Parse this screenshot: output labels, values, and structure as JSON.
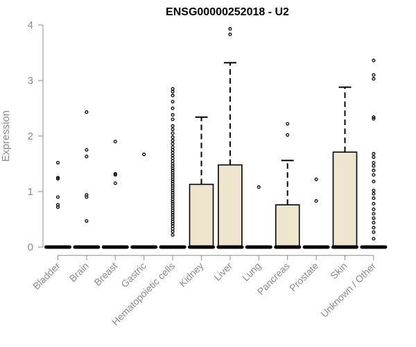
{
  "chart_data": {
    "type": "boxplot",
    "title": "ENSG00000252018 - U2",
    "xlabel": "",
    "ylabel": "Expression",
    "ylim": [
      0,
      4
    ],
    "yticks": [
      0,
      1,
      2,
      3,
      4
    ],
    "box_fill": "#ede6cc",
    "categories": [
      "Bladder",
      "Brain",
      "Breast",
      "Gastric",
      "Hematopoietic cells",
      "Kidney",
      "Liver",
      "Lung",
      "Pancreas",
      "Prostate",
      "Skin",
      "Unknown / Other"
    ],
    "boxes": [
      {
        "q1": 0,
        "median": 0,
        "q3": 0,
        "whisker_low": 0,
        "whisker_high": 0,
        "outliers": [
          0.72,
          0.76,
          0.9,
          1.23,
          1.25,
          1.52
        ]
      },
      {
        "q1": 0,
        "median": 0,
        "q3": 0,
        "whisker_low": 0,
        "whisker_high": 0,
        "outliers": [
          0.47,
          0.9,
          0.94,
          1.63,
          1.75,
          2.43
        ]
      },
      {
        "q1": 0,
        "median": 0,
        "q3": 0,
        "whisker_low": 0,
        "whisker_high": 0,
        "outliers": [
          1.15,
          1.3,
          1.32,
          1.9
        ]
      },
      {
        "q1": 0,
        "median": 0,
        "q3": 0,
        "whisker_low": 0,
        "whisker_high": 0,
        "outliers": [
          1.67
        ]
      },
      {
        "q1": 0,
        "median": 0,
        "q3": 0,
        "whisker_low": 0,
        "whisker_high": 0,
        "outliers": [
          0.22,
          0.28,
          0.33,
          0.38,
          0.42,
          0.46,
          0.5,
          0.54,
          0.58,
          0.62,
          0.66,
          0.7,
          0.74,
          0.78,
          0.82,
          0.86,
          0.9,
          0.94,
          0.98,
          1.02,
          1.06,
          1.1,
          1.14,
          1.18,
          1.22,
          1.26,
          1.3,
          1.34,
          1.38,
          1.42,
          1.46,
          1.5,
          1.55,
          1.6,
          1.65,
          1.7,
          1.75,
          1.8,
          1.86,
          1.92,
          1.98,
          2.05,
          2.12,
          2.18,
          2.3,
          2.38,
          2.5,
          2.62,
          2.73,
          2.8,
          2.85
        ]
      },
      {
        "q1": 0,
        "median": 0,
        "q3": 1.13,
        "whisker_low": 0,
        "whisker_high": 2.34,
        "outliers": []
      },
      {
        "q1": 0,
        "median": 0,
        "q3": 1.48,
        "whisker_low": 0,
        "whisker_high": 3.32,
        "outliers": [
          3.83,
          3.93
        ]
      },
      {
        "q1": 0,
        "median": 0,
        "q3": 0,
        "whisker_low": 0,
        "whisker_high": 0,
        "outliers": [
          1.08
        ]
      },
      {
        "q1": 0,
        "median": 0,
        "q3": 0.76,
        "whisker_low": 0,
        "whisker_high": 1.56,
        "outliers": [
          2.02,
          2.22
        ]
      },
      {
        "q1": 0,
        "median": 0,
        "q3": 0,
        "whisker_low": 0,
        "whisker_high": 0,
        "outliers": [
          0.83,
          1.22
        ]
      },
      {
        "q1": 0,
        "median": 0,
        "q3": 1.71,
        "whisker_low": 0,
        "whisker_high": 2.88,
        "outliers": []
      },
      {
        "q1": 0,
        "median": 0,
        "q3": 0,
        "whisker_low": 0,
        "whisker_high": 0,
        "outliers": [
          0.15,
          0.27,
          0.35,
          0.44,
          0.52,
          0.6,
          0.68,
          0.78,
          0.88,
          0.96,
          1.02,
          1.18,
          1.3,
          1.38,
          1.46,
          1.52,
          1.62,
          1.68,
          2.31,
          2.34,
          3.03,
          3.1,
          3.36
        ]
      }
    ]
  }
}
